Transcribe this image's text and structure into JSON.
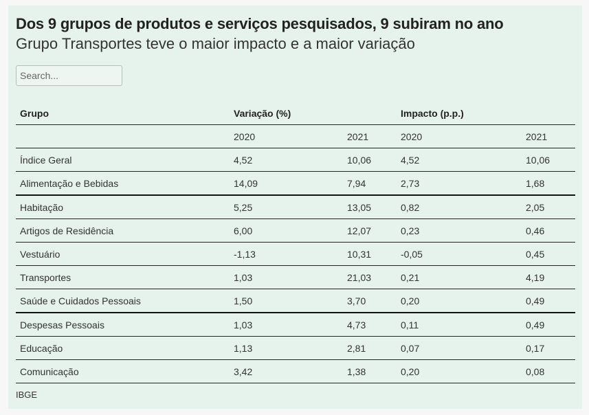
{
  "title": "Dos 9 grupos de produtos e serviços pesquisados, 9 subiram no ano",
  "subtitle": "Grupo Transportes teve o maior impacto e a maior variação",
  "search": {
    "placeholder": "Search..."
  },
  "table": {
    "headers": [
      "Grupo",
      "Variação (%)",
      "",
      "Impacto (p.p.)",
      ""
    ],
    "subheaders": [
      "",
      "2020",
      "2021",
      "2020",
      "2021"
    ],
    "rows": [
      [
        "Índice Geral",
        "4,52",
        "10,06",
        "4,52",
        "10,06"
      ],
      [
        "Alimentação e Bebidas",
        "14,09",
        "7,94",
        "2,73",
        "1,68"
      ],
      [
        "Habitação",
        "5,25",
        "13,05",
        "0,82",
        "2,05"
      ],
      [
        "Artigos de Residência",
        "6,00",
        "12,07",
        "0,23",
        "0,46"
      ],
      [
        "Vestuário",
        "-1,13",
        "10,31",
        "-0,05",
        "0,45"
      ],
      [
        "Transportes",
        "1,03",
        "21,03",
        "0,21",
        "4,19"
      ],
      [
        "Saúde e Cuidados Pessoais",
        "1,50",
        "3,70",
        "0,20",
        "0,49"
      ],
      [
        "Despesas Pessoais",
        "1,03",
        "4,73",
        "0,11",
        "0,49"
      ],
      [
        "Educação",
        "1,13",
        "2,81",
        "0,07",
        "0,17"
      ],
      [
        "Comunicação",
        "3,42",
        "1,38",
        "0,20",
        "0,08"
      ]
    ]
  },
  "source": "IBGE"
}
